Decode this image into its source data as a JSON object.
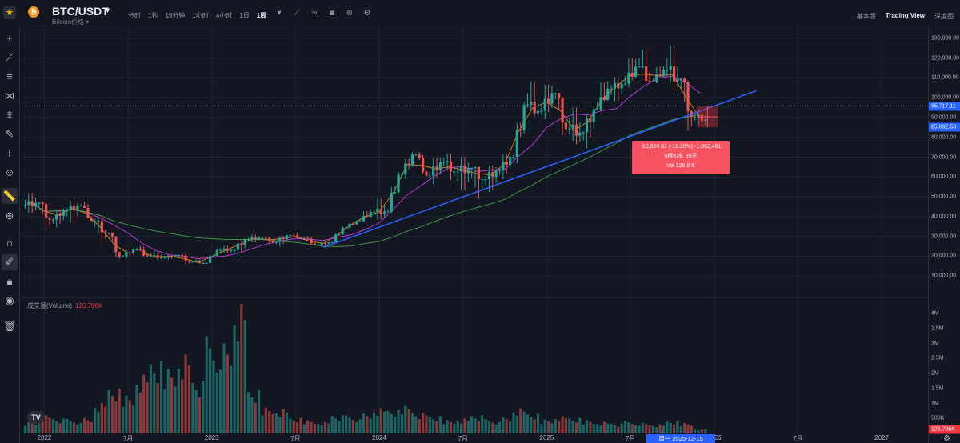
{
  "header": {
    "symbol": "BTC/USDT",
    "subtitle": "Bitcoin价格",
    "intervals": [
      "分时",
      "1秒",
      "15分钟",
      "1小时",
      "4小时",
      "1日",
      "1周"
    ],
    "active_interval": "1周",
    "views": [
      "基本版",
      "Trading View",
      "深度图"
    ],
    "active_view": "Trading View"
  },
  "price_axis": {
    "ticks": [
      "130,000.00",
      "120,000.00",
      "110,000.00",
      "100,000.00",
      "90,000.00",
      "80,000.00",
      "70,000.00",
      "60,000.00",
      "50,000.00",
      "40,000.00",
      "30,000.00",
      "20,000.00",
      "10,000.00"
    ],
    "current_price": "95,717.11",
    "measure_price": "85,092.50"
  },
  "volume_axis": {
    "ticks": [
      "4M",
      "3.5M",
      "3M",
      "2.5M",
      "2M",
      "1.5M",
      "1M",
      "500K"
    ],
    "current_volume": "126.796K"
  },
  "time_axis": {
    "ticks": [
      "2022",
      "7月",
      "2023",
      "7月",
      "2024",
      "7月",
      "2025",
      "7月",
      "2026",
      "7月",
      "2027"
    ],
    "cursor_label": "周一  2025-12-15"
  },
  "volume_pane": {
    "title": "成交量(Volume)",
    "value": "126.796K"
  },
  "measure_tooltip": {
    "line1": "-10,624.61 (-11.10%) -1,062,461",
    "line2": "5根K线, 35天",
    "line3": "Vol 126.8 K"
  },
  "colors": {
    "up": "#26a69a",
    "down": "#ef5350",
    "background": "#131722",
    "trendline": "#2962ff",
    "ma_fast": "#ff9800",
    "ma_mid": "#e040fb",
    "ma_slow": "#4caf50"
  },
  "chart_data": {
    "type": "candlestick",
    "timeframe": "1周",
    "series": [
      {
        "t": "2021-12",
        "o": 46000,
        "h": 52000,
        "l": 42000,
        "c": 47000,
        "v": 0.34
      },
      {
        "t": "2022-01",
        "o": 47000,
        "h": 48000,
        "l": 33000,
        "c": 38500,
        "v": 0.55
      },
      {
        "t": "2022-02",
        "o": 38500,
        "h": 45000,
        "l": 34500,
        "c": 43200,
        "v": 0.45
      },
      {
        "t": "2022-03",
        "o": 43200,
        "h": 48000,
        "l": 37000,
        "c": 45500,
        "v": 0.4
      },
      {
        "t": "2022-04",
        "o": 45500,
        "h": 47500,
        "l": 37800,
        "c": 37700,
        "v": 0.42
      },
      {
        "t": "2022-05",
        "o": 37700,
        "h": 40000,
        "l": 26000,
        "c": 31800,
        "v": 0.85
      },
      {
        "t": "2022-06",
        "o": 31800,
        "h": 32000,
        "l": 17600,
        "c": 19900,
        "v": 1.25
      },
      {
        "t": "2022-07",
        "o": 19900,
        "h": 24600,
        "l": 18800,
        "c": 23300,
        "v": 1.1
      },
      {
        "t": "2022-08",
        "o": 23300,
        "h": 25200,
        "l": 19500,
        "c": 20000,
        "v": 1.7
      },
      {
        "t": "2022-09",
        "o": 20000,
        "h": 22800,
        "l": 18100,
        "c": 19400,
        "v": 2.1
      },
      {
        "t": "2022-10",
        "o": 19400,
        "h": 21000,
        "l": 18200,
        "c": 20500,
        "v": 1.95
      },
      {
        "t": "2022-11",
        "o": 20500,
        "h": 21400,
        "l": 15500,
        "c": 17200,
        "v": 2.4
      },
      {
        "t": "2022-12",
        "o": 17200,
        "h": 18400,
        "l": 16300,
        "c": 16550,
        "v": 1.6
      },
      {
        "t": "2023-01",
        "o": 16550,
        "h": 24000,
        "l": 16500,
        "c": 23100,
        "v": 2.7
      },
      {
        "t": "2023-02",
        "o": 23100,
        "h": 25300,
        "l": 21400,
        "c": 23200,
        "v": 2.5
      },
      {
        "t": "2023-03",
        "o": 23200,
        "h": 29200,
        "l": 19500,
        "c": 28500,
        "v": 3.6
      },
      {
        "t": "2023-04",
        "o": 28500,
        "h": 31000,
        "l": 27000,
        "c": 29300,
        "v": 1.2
      },
      {
        "t": "2023-05",
        "o": 29300,
        "h": 29800,
        "l": 25800,
        "c": 27200,
        "v": 0.75
      },
      {
        "t": "2023-06",
        "o": 27200,
        "h": 31400,
        "l": 24800,
        "c": 30500,
        "v": 0.7
      },
      {
        "t": "2023-07",
        "o": 30500,
        "h": 31800,
        "l": 29000,
        "c": 29200,
        "v": 0.45
      },
      {
        "t": "2023-08",
        "o": 29200,
        "h": 30200,
        "l": 25300,
        "c": 26000,
        "v": 0.4
      },
      {
        "t": "2023-09",
        "o": 26000,
        "h": 27500,
        "l": 24900,
        "c": 27000,
        "v": 0.35
      },
      {
        "t": "2023-10",
        "o": 27000,
        "h": 35200,
        "l": 26500,
        "c": 34500,
        "v": 0.55
      },
      {
        "t": "2023-11",
        "o": 34500,
        "h": 38400,
        "l": 34000,
        "c": 37700,
        "v": 0.5
      },
      {
        "t": "2023-12",
        "o": 37700,
        "h": 44700,
        "l": 37600,
        "c": 42300,
        "v": 0.55
      },
      {
        "t": "2024-01",
        "o": 42300,
        "h": 49000,
        "l": 38500,
        "c": 42600,
        "v": 0.7
      },
      {
        "t": "2024-02",
        "o": 42600,
        "h": 64000,
        "l": 41800,
        "c": 61200,
        "v": 0.65
      },
      {
        "t": "2024-03",
        "o": 61200,
        "h": 73800,
        "l": 59000,
        "c": 71300,
        "v": 0.8
      },
      {
        "t": "2024-04",
        "o": 71300,
        "h": 72700,
        "l": 59600,
        "c": 60700,
        "v": 0.6
      },
      {
        "t": "2024-05",
        "o": 60700,
        "h": 71900,
        "l": 56500,
        "c": 67500,
        "v": 0.5
      },
      {
        "t": "2024-06",
        "o": 67500,
        "h": 72000,
        "l": 58400,
        "c": 62700,
        "v": 0.4
      },
      {
        "t": "2024-07",
        "o": 62700,
        "h": 70000,
        "l": 53500,
        "c": 64600,
        "v": 0.45
      },
      {
        "t": "2024-08",
        "o": 64600,
        "h": 65000,
        "l": 49000,
        "c": 58900,
        "v": 0.55
      },
      {
        "t": "2024-09",
        "o": 58900,
        "h": 66500,
        "l": 52500,
        "c": 63300,
        "v": 0.4
      },
      {
        "t": "2024-10",
        "o": 63300,
        "h": 73600,
        "l": 58900,
        "c": 70200,
        "v": 0.45
      },
      {
        "t": "2024-11",
        "o": 70200,
        "h": 99800,
        "l": 66800,
        "c": 96400,
        "v": 0.7
      },
      {
        "t": "2024-12",
        "o": 96400,
        "h": 108300,
        "l": 90500,
        "c": 93400,
        "v": 0.55
      },
      {
        "t": "2025-01",
        "o": 93400,
        "h": 109600,
        "l": 89200,
        "c": 102400,
        "v": 0.4
      },
      {
        "t": "2025-02",
        "o": 102400,
        "h": 102500,
        "l": 78200,
        "c": 84300,
        "v": 0.5
      },
      {
        "t": "2025-03",
        "o": 84300,
        "h": 95000,
        "l": 76500,
        "c": 82500,
        "v": 0.45
      },
      {
        "t": "2025-04",
        "o": 82500,
        "h": 95700,
        "l": 74500,
        "c": 94200,
        "v": 0.4
      },
      {
        "t": "2025-05",
        "o": 94200,
        "h": 111900,
        "l": 93400,
        "c": 104600,
        "v": 0.35
      },
      {
        "t": "2025-06",
        "o": 104600,
        "h": 110500,
        "l": 98200,
        "c": 107100,
        "v": 0.3
      },
      {
        "t": "2025-07",
        "o": 107100,
        "h": 123200,
        "l": 105200,
        "c": 115700,
        "v": 0.35
      },
      {
        "t": "2025-08",
        "o": 115700,
        "h": 124500,
        "l": 107300,
        "c": 108200,
        "v": 0.3
      },
      {
        "t": "2025-09",
        "o": 108200,
        "h": 117900,
        "l": 107300,
        "c": 114000,
        "v": 0.25
      },
      {
        "t": "2025-10",
        "o": 114000,
        "h": 126200,
        "l": 103500,
        "c": 109600,
        "v": 0.35
      },
      {
        "t": "2025-11",
        "o": 109600,
        "h": 110600,
        "l": 80600,
        "c": 90400,
        "v": 0.3
      },
      {
        "t": "2025-12",
        "o": 90400,
        "h": 94500,
        "l": 85000,
        "c": 89000,
        "v": 0.13
      }
    ],
    "ylim": [
      0,
      136000
    ],
    "volume_ylim": [
      0,
      4
    ],
    "volume_unit": "M",
    "legend": "none",
    "grid": true,
    "moving_averages": [
      "short",
      "medium",
      "long"
    ],
    "trendline": {
      "from": {
        "t": "2023-09",
        "price": 24500
      },
      "to": {
        "t": "2026-04",
        "price": 103500
      }
    },
    "measure": {
      "from_price": 95717.11,
      "to_price": 85092.5
    }
  }
}
